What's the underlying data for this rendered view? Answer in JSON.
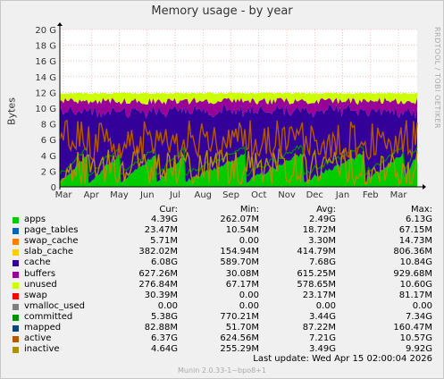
{
  "title": "Memory usage - by year",
  "ylabel": "Bytes",
  "side_label": "RRDTOOL / TOBI OETIKER",
  "footer": "Munin 2.0.33-1~bpo8+1",
  "last_update": "Last update: Wed Apr 15 02:00:04 2026",
  "headers": [
    "Cur:",
    "Min:",
    "Avg:",
    "Max:"
  ],
  "chart_data": {
    "type": "area",
    "title": "Memory usage - by year",
    "ylabel": "Bytes",
    "ylim": [
      0,
      20
    ],
    "y_ticks": [
      0,
      2,
      4,
      6,
      8,
      10,
      12,
      14,
      16,
      18,
      20
    ],
    "y_tick_labels": [
      "0",
      "2 G",
      "4 G",
      "6 G",
      "8 G",
      "10 G",
      "12 G",
      "14 G",
      "16 G",
      "18 G",
      "20 G"
    ],
    "x_ticks": [
      "Mar",
      "Apr",
      "May",
      "Jun",
      "Jul",
      "Aug",
      "Sep",
      "Oct",
      "Nov",
      "Dec",
      "Jan",
      "Feb",
      "Mar"
    ],
    "grid": true,
    "series": [
      {
        "name": "apps",
        "color": "#00cc00",
        "cur": "4.39G",
        "min": "262.07M",
        "avg": "2.49G",
        "max": "6.13G"
      },
      {
        "name": "page_tables",
        "color": "#0066b3",
        "cur": "23.47M",
        "min": "10.54M",
        "avg": "18.72M",
        "max": "67.15M"
      },
      {
        "name": "swap_cache",
        "color": "#ff8000",
        "cur": "5.71M",
        "min": "0.00",
        "avg": "3.30M",
        "max": "14.73M"
      },
      {
        "name": "slab_cache",
        "color": "#ffcc00",
        "cur": "382.02M",
        "min": "154.94M",
        "avg": "414.79M",
        "max": "806.36M"
      },
      {
        "name": "cache",
        "color": "#330099",
        "cur": "6.08G",
        "min": "589.70M",
        "avg": "7.68G",
        "max": "10.84G"
      },
      {
        "name": "buffers",
        "color": "#990099",
        "cur": "627.26M",
        "min": "30.08M",
        "avg": "615.25M",
        "max": "929.68M"
      },
      {
        "name": "unused",
        "color": "#ccff00",
        "cur": "276.84M",
        "min": "67.17M",
        "avg": "578.65M",
        "max": "10.60G"
      },
      {
        "name": "swap",
        "color": "#ff0000",
        "cur": "30.39M",
        "min": "0.00",
        "avg": "23.17M",
        "max": "81.17M"
      },
      {
        "name": "vmalloc_used",
        "color": "#808080",
        "cur": "0.00",
        "min": "0.00",
        "avg": "0.00",
        "max": "0.00"
      },
      {
        "name": "committed",
        "color": "#008f00",
        "cur": "5.38G",
        "min": "770.21M",
        "avg": "3.44G",
        "max": "7.34G"
      },
      {
        "name": "mapped",
        "color": "#00487d",
        "cur": "82.88M",
        "min": "51.70M",
        "avg": "87.22M",
        "max": "160.47M"
      },
      {
        "name": "active",
        "color": "#b35a00",
        "cur": "6.37G",
        "min": "624.56M",
        "avg": "7.21G",
        "max": "10.57G"
      },
      {
        "name": "inactive",
        "color": "#b38f00",
        "cur": "4.64G",
        "min": "255.29M",
        "avg": "3.49G",
        "max": "9.92G"
      }
    ]
  }
}
